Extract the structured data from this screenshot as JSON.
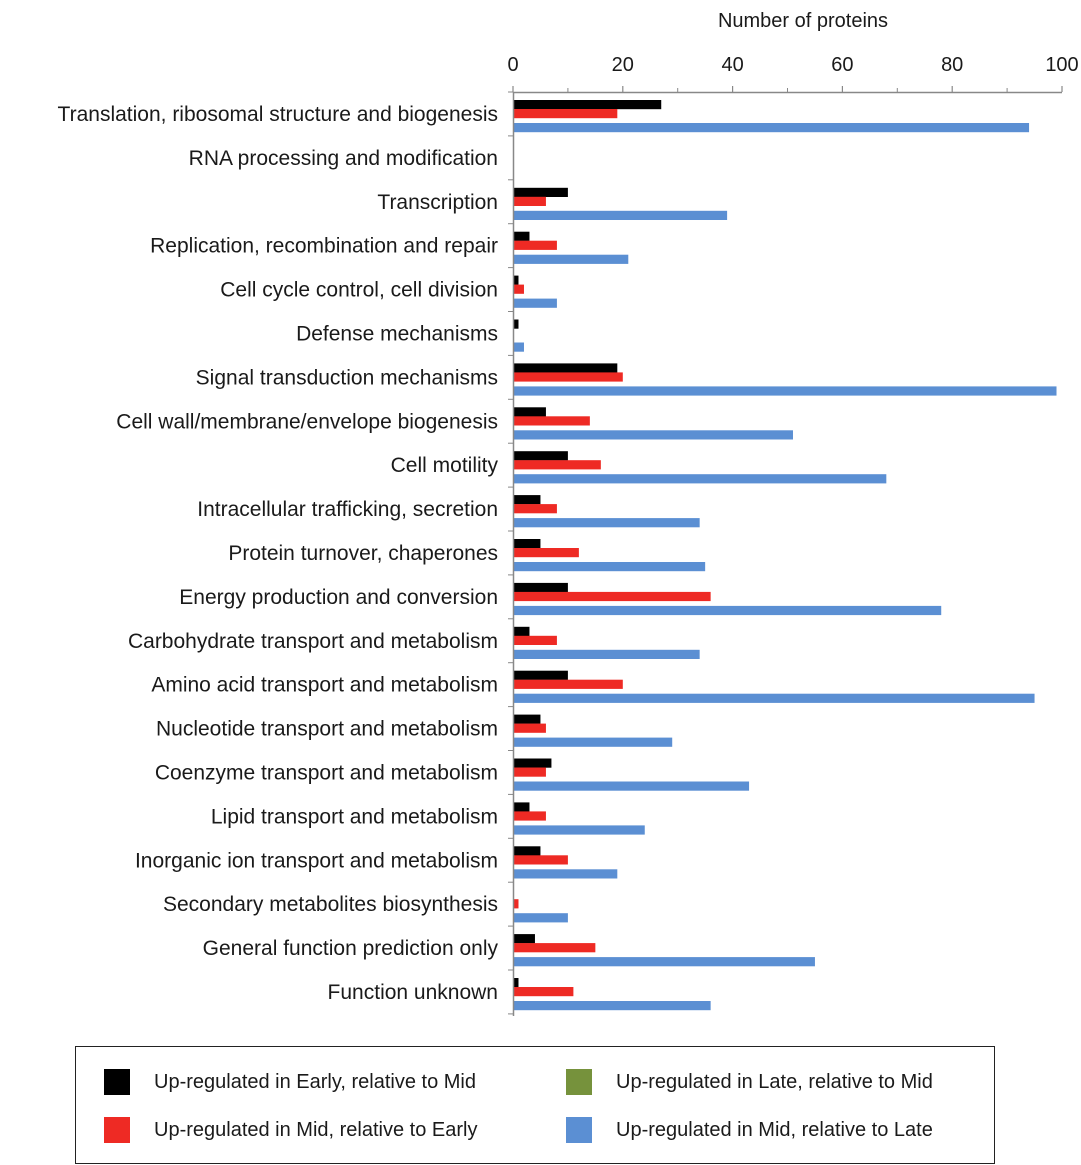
{
  "chart_data": {
    "type": "bar",
    "orientation": "horizontal",
    "xlabel": "Number of proteins",
    "xlim": [
      0,
      100
    ],
    "xticks": [
      "0",
      "20",
      "40",
      "60",
      "80",
      "100"
    ],
    "categories": [
      "Translation, ribosomal structure and biogenesis",
      "RNA processing and modification",
      "Transcription",
      "Replication, recombination and repair",
      "Cell cycle control, cell division",
      "Defense mechanisms",
      "Signal transduction mechanisms",
      "Cell wall/membrane/envelope biogenesis",
      "Cell motility",
      "Intracellular trafficking, secretion",
      "Protein turnover, chaperones",
      "Energy production and conversion",
      "Carbohydrate transport and metabolism",
      "Amino acid transport and metabolism",
      "Nucleotide transport and metabolism",
      "Coenzyme transport and metabolism",
      "Lipid transport and metabolism",
      "Inorganic ion transport and metabolism",
      "Secondary metabolites biosynthesis",
      "General function prediction only",
      "Function unknown"
    ],
    "series": [
      {
        "name": "Up-regulated in Early, relative to Mid",
        "color": "#000000",
        "values": [
          27,
          0,
          10,
          3,
          1,
          1,
          19,
          6,
          10,
          5,
          5,
          10,
          3,
          10,
          5,
          7,
          3,
          5,
          0,
          4,
          1
        ]
      },
      {
        "name": "Up-regulated in Mid, relative to Early",
        "color": "#ee2a24",
        "values": [
          19,
          0,
          6,
          8,
          2,
          0,
          20,
          14,
          16,
          8,
          12,
          36,
          8,
          20,
          6,
          6,
          6,
          10,
          1,
          15,
          11
        ]
      },
      {
        "name": "Up-regulated in Late, relative to Mid",
        "color": "#76923c",
        "values": [
          0,
          0,
          0,
          0,
          0,
          0,
          0,
          0,
          0,
          0,
          0,
          0,
          0,
          0,
          0,
          0,
          0,
          0,
          0,
          0,
          0
        ]
      },
      {
        "name": "Up-regulated in Mid, relative to Late",
        "color": "#5b8fd3",
        "values": [
          94,
          0,
          39,
          21,
          8,
          2,
          99,
          51,
          68,
          34,
          35,
          78,
          34,
          95,
          29,
          43,
          24,
          19,
          10,
          55,
          36
        ]
      }
    ],
    "grid": false,
    "legend_position": "bottom"
  }
}
